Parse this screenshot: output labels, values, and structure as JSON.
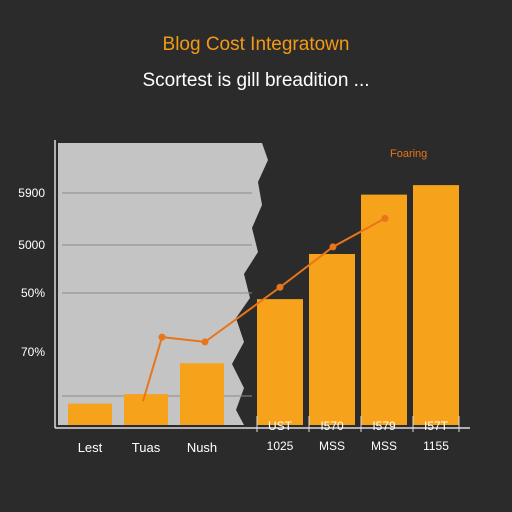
{
  "header": {
    "title": "Blog Cost Integratown",
    "subtitle": "Scortest is gill breadition ..."
  },
  "chart_data": {
    "type": "bar",
    "title": "Blog Cost Integratown",
    "subtitle": "Scortest is gill breadition ...",
    "y_tick_labels": [
      "5900",
      "5000",
      "50%",
      "70%"
    ],
    "left_panel": {
      "categories": [
        "Lest",
        "Tuas",
        "Nush"
      ],
      "values": [
        9,
        13,
        26
      ]
    },
    "right_panel": {
      "categories": [
        "UST 1025",
        "I570 MSS",
        "I579 MSS",
        "I57T 1155"
      ],
      "category_lines": [
        [
          "UST",
          "1025"
        ],
        [
          "I570",
          "MSS"
        ],
        [
          "I579",
          "MSS"
        ],
        [
          "I57T",
          "1155"
        ]
      ],
      "values": [
        53,
        72,
        97,
        101
      ]
    },
    "line_series": {
      "name": "Foaring",
      "values": [
        10,
        37,
        35,
        58,
        75,
        87
      ]
    },
    "ylim": [
      0,
      120
    ],
    "colors": {
      "bar": "#f7a21b",
      "line": "#e8751a",
      "left_panel_bg": "#c4c4c4",
      "text": "#ffffff",
      "accent_text": "#f29a16",
      "grid": "#8a8a8a"
    }
  }
}
